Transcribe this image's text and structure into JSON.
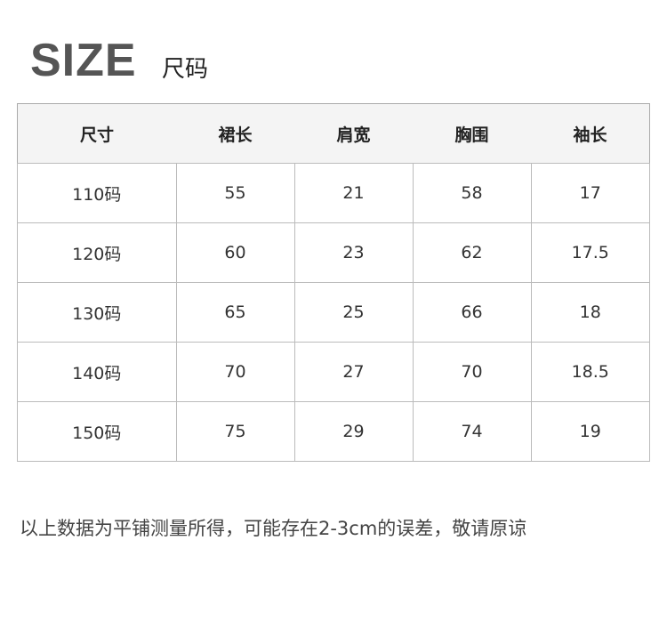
{
  "title": "SIZE",
  "subtitle": "尺码",
  "table": {
    "headers": [
      "尺寸",
      "裙长",
      "肩宽",
      "胸围",
      "袖长"
    ],
    "rows": [
      [
        "110码",
        "55",
        "21",
        "58",
        "17"
      ],
      [
        "120码",
        "60",
        "23",
        "62",
        "17.5"
      ],
      [
        "130码",
        "65",
        "25",
        "66",
        "18"
      ],
      [
        "140码",
        "70",
        "27",
        "70",
        "18.5"
      ],
      [
        "150码",
        "75",
        "29",
        "74",
        "19"
      ]
    ]
  },
  "note": "以上数据为平铺测量所得，可能存在2-3cm的误差，敬请原谅"
}
